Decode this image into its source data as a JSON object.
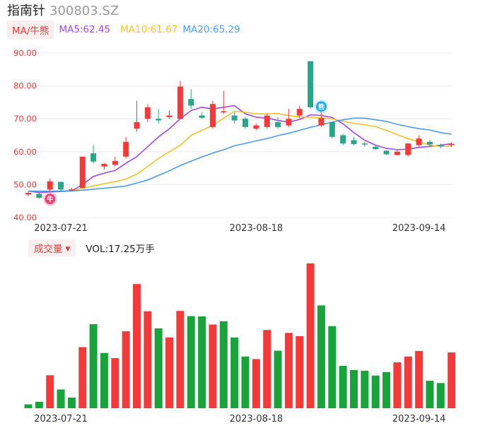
{
  "header": {
    "name": "指南针",
    "code": "300803.SZ"
  },
  "legend": {
    "tag": "MA/牛熊",
    "ma5": "MA5:62.45",
    "ma10": "MA10:61.67",
    "ma20": "MA20:65.29"
  },
  "volume_header": {
    "tag": "成交量",
    "text": "VOL:17.25万手"
  },
  "colors": {
    "up": "#f23a3a",
    "down": "#1aa33c",
    "candle_down": "#2ba58a",
    "ma5": "#a247e0",
    "ma10": "#f5c02a",
    "ma20": "#4c9bea",
    "axis_label": "#e23b3b",
    "date_label": "#333333",
    "grid": "#ececec",
    "bull_badge": "#f0437b",
    "bear_badge": "#2aa8e8"
  },
  "markers": {
    "bull": "牛",
    "bear": "熊"
  },
  "chart_data": [
    {
      "type": "candlestick",
      "title": "",
      "ylim": [
        40,
        90
      ],
      "yticks": [
        "90.00",
        "80.00",
        "70.00",
        "60.00",
        "50.00",
        "40.00"
      ],
      "date_labels": [
        {
          "index": 3,
          "label": "2023-07-21"
        },
        {
          "index": 21,
          "label": "2023-08-18"
        },
        {
          "index": 36,
          "label": "2023-09-14"
        }
      ],
      "candles": [
        {
          "o": 47.0,
          "c": 47.5,
          "h": 48.0,
          "l": 46.5
        },
        {
          "o": 47.2,
          "c": 46.0,
          "h": 47.5,
          "l": 45.8
        },
        {
          "o": 48.5,
          "c": 51.0,
          "h": 51.8,
          "l": 48.0
        },
        {
          "o": 50.8,
          "c": 48.5,
          "h": 51.0,
          "l": 48.0
        },
        {
          "o": 48.4,
          "c": 48.6,
          "h": 49.0,
          "l": 48.0
        },
        {
          "o": 49.0,
          "c": 58.5,
          "h": 58.5,
          "l": 48.8
        },
        {
          "o": 59.5,
          "c": 57.0,
          "h": 62.0,
          "l": 56.5
        },
        {
          "o": 55.5,
          "c": 56.3,
          "h": 56.5,
          "l": 54.5
        },
        {
          "o": 56.0,
          "c": 57.2,
          "h": 58.5,
          "l": 55.5
        },
        {
          "o": 58.5,
          "c": 63.0,
          "h": 64.5,
          "l": 58.0
        },
        {
          "o": 67.0,
          "c": 69.0,
          "h": 75.5,
          "l": 66.0
        },
        {
          "o": 70.0,
          "c": 73.5,
          "h": 74.5,
          "l": 69.0
        },
        {
          "o": 70.0,
          "c": 69.5,
          "h": 73.0,
          "l": 68.5
        },
        {
          "o": 70.5,
          "c": 71.0,
          "h": 72.5,
          "l": 70.0
        },
        {
          "o": 70.0,
          "c": 79.8,
          "h": 81.5,
          "l": 70.0
        },
        {
          "o": 76.0,
          "c": 74.0,
          "h": 79.0,
          "l": 73.0
        },
        {
          "o": 71.0,
          "c": 70.3,
          "h": 72.0,
          "l": 70.0
        },
        {
          "o": 67.5,
          "c": 74.5,
          "h": 75.5,
          "l": 67.0
        },
        {
          "o": 72.0,
          "c": 72.3,
          "h": 78.5,
          "l": 71.5
        },
        {
          "o": 71.0,
          "c": 69.5,
          "h": 72.0,
          "l": 68.5
        },
        {
          "o": 70.0,
          "c": 67.5,
          "h": 70.5,
          "l": 67.0
        },
        {
          "o": 67.0,
          "c": 68.0,
          "h": 68.5,
          "l": 66.5
        },
        {
          "o": 67.5,
          "c": 71.0,
          "h": 71.5,
          "l": 67.0
        },
        {
          "o": 69.0,
          "c": 67.5,
          "h": 70.5,
          "l": 67.0
        },
        {
          "o": 68.0,
          "c": 70.0,
          "h": 73.0,
          "l": 67.5
        },
        {
          "o": 71.0,
          "c": 73.0,
          "h": 74.0,
          "l": 70.0
        },
        {
          "o": 87.5,
          "c": 73.5,
          "h": 87.5,
          "l": 73.0
        },
        {
          "o": 68.0,
          "c": 70.2,
          "h": 72.0,
          "l": 67.5
        },
        {
          "o": 69.0,
          "c": 64.5,
          "h": 69.0,
          "l": 64.0
        },
        {
          "o": 65.0,
          "c": 62.5,
          "h": 65.5,
          "l": 62.0
        },
        {
          "o": 63.5,
          "c": 62.3,
          "h": 64.5,
          "l": 62.0
        },
        {
          "o": 62.5,
          "c": 62.2,
          "h": 63.0,
          "l": 61.5
        },
        {
          "o": 61.5,
          "c": 60.8,
          "h": 62.0,
          "l": 60.5
        },
        {
          "o": 60.3,
          "c": 59.2,
          "h": 60.5,
          "l": 59.0
        },
        {
          "o": 59.0,
          "c": 60.0,
          "h": 60.5,
          "l": 58.8
        },
        {
          "o": 59.0,
          "c": 62.5,
          "h": 62.5,
          "l": 58.5
        },
        {
          "o": 62.0,
          "c": 64.0,
          "h": 65.0,
          "l": 61.5
        },
        {
          "o": 63.0,
          "c": 62.2,
          "h": 63.5,
          "l": 61.8
        },
        {
          "o": 62.0,
          "c": 61.8,
          "h": 62.5,
          "l": 61.0
        },
        {
          "o": 62.0,
          "c": 62.4,
          "h": 62.8,
          "l": 61.5
        }
      ],
      "series": [
        {
          "name": "MA5",
          "values": [
            48.0,
            47.6,
            47.8,
            47.9,
            48.1,
            50.0,
            52.5,
            53.5,
            54.3,
            56.5,
            58.5,
            61.5,
            64.5,
            67.0,
            70.0,
            72.5,
            73.5,
            73.0,
            73.5,
            74.0,
            71.5,
            70.5,
            70.2,
            69.5,
            69.0,
            69.8,
            71.2,
            71.0,
            70.4,
            68.5,
            65.8,
            63.5,
            62.0,
            61.0,
            60.6,
            60.8,
            61.3,
            61.6,
            62.0,
            62.45
          ]
        },
        {
          "name": "MA10",
          "values": [
            48.0,
            48.0,
            48.0,
            48.1,
            48.2,
            48.9,
            49.6,
            50.3,
            50.9,
            51.7,
            53.2,
            55.5,
            58.0,
            60.0,
            61.9,
            65.0,
            66.5,
            68.0,
            70.2,
            72.3,
            72.0,
            71.5,
            71.5,
            71.6,
            71.0,
            70.6,
            70.5,
            70.3,
            70.0,
            69.3,
            68.6,
            68.2,
            67.6,
            66.5,
            65.2,
            64.0,
            63.0,
            62.0,
            61.6,
            61.67
          ]
        },
        {
          "name": "MA20",
          "values": [
            48.0,
            48.0,
            48.0,
            48.0,
            48.1,
            48.3,
            48.6,
            48.9,
            49.2,
            49.6,
            50.5,
            51.4,
            52.8,
            54.2,
            55.8,
            57.1,
            58.4,
            59.6,
            60.6,
            61.8,
            62.5,
            63.3,
            64.0,
            64.9,
            65.6,
            66.5,
            67.4,
            68.2,
            69.0,
            69.7,
            70.2,
            70.2,
            69.7,
            69.2,
            68.3,
            67.6,
            67.0,
            66.6,
            65.8,
            65.29
          ]
        }
      ],
      "markers": [
        {
          "type": "bull",
          "index": 2
        },
        {
          "type": "bear",
          "index": 27
        }
      ]
    },
    {
      "type": "bar",
      "title": "",
      "unit": "万手",
      "ylim": [
        0,
        45
      ],
      "date_labels": [
        {
          "index": 3,
          "label": "2023-07-21"
        },
        {
          "index": 21,
          "label": "2023-08-18"
        },
        {
          "index": 36,
          "label": "2023-09-14"
        }
      ],
      "values": [
        1.2,
        2.0,
        10.2,
        5.8,
        3.3,
        18.9,
        26.0,
        17.1,
        15.5,
        23.8,
        38.4,
        30.0,
        24.7,
        21.9,
        30.1,
        28.5,
        28.4,
        25.9,
        26.9,
        21.9,
        16.0,
        15.2,
        24.2,
        17.8,
        23.3,
        22.3,
        44.8,
        31.8,
        25.4,
        13.1,
        11.8,
        11.6,
        10.1,
        11.2,
        14.2,
        16.0,
        17.7,
        8.5,
        7.8,
        17.25
      ],
      "directions": [
        "down",
        "down",
        "up",
        "down",
        "down",
        "up",
        "down",
        "down",
        "up",
        "up",
        "up",
        "up",
        "down",
        "up",
        "up",
        "down",
        "down",
        "up",
        "down",
        "down",
        "down",
        "up",
        "up",
        "down",
        "up",
        "up",
        "up",
        "down",
        "down",
        "down",
        "down",
        "down",
        "down",
        "down",
        "up",
        "up",
        "up",
        "down",
        "down",
        "up"
      ]
    }
  ]
}
